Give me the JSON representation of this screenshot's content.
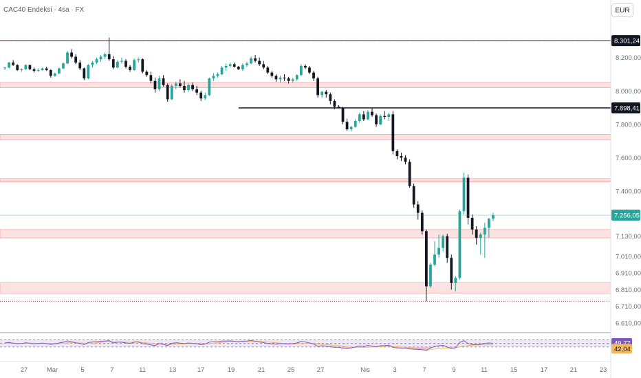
{
  "header": {
    "title": "CAC40 Endeksi · 4sa · FX",
    "currency": "EUR"
  },
  "colors": {
    "up": "#26a69a",
    "down": "#131722",
    "zone_fill": "#fde2e2",
    "zone_stroke": "#f08a8a",
    "rsi": "#7e57c2",
    "rsi_ma": "#f4b95a",
    "rsi_zone": "#ede7f6"
  },
  "chart_data": {
    "type": "candlestick",
    "title": "CAC40 Endeksi · 4sa · FX",
    "ylim": [
      6610,
      8380
    ],
    "y_ticks": [
      {
        "v": 8200,
        "label": "8.200,00"
      },
      {
        "v": 8000,
        "label": "8.000,00"
      },
      {
        "v": 7800,
        "label": "7.800,00"
      },
      {
        "v": 7600,
        "label": "7.600,00"
      },
      {
        "v": 7400,
        "label": "7.400,00"
      },
      {
        "v": 7130,
        "label": "7.130,00"
      },
      {
        "v": 7010,
        "label": "7.010,00"
      },
      {
        "v": 6910,
        "label": "6.910,00"
      },
      {
        "v": 6810,
        "label": "6.810,00"
      },
      {
        "v": 6710,
        "label": "6.710,00"
      },
      {
        "v": 6610,
        "label": "6.610,00"
      }
    ],
    "x_ticks": [
      "27",
      "Mar",
      "5",
      "7",
      "11",
      "13",
      "17",
      "19",
      "21",
      "25",
      "27",
      "Nis",
      "3",
      "7",
      "9",
      "11",
      "15",
      "17",
      "21",
      "23"
    ],
    "price_tags": [
      {
        "v": 8301.24,
        "label": "8.301,24",
        "style": "dark"
      },
      {
        "v": 7898.41,
        "label": "7.898,41",
        "style": "dark"
      },
      {
        "v": 7256.05,
        "label": "7.256,05",
        "style": "green"
      }
    ],
    "levels": [
      {
        "type": "line",
        "v": 8301.24,
        "style": "black-dotted-red"
      },
      {
        "type": "line",
        "v": 7898.41,
        "x_start_index": 56,
        "style": "black"
      },
      {
        "type": "line",
        "v": 6740,
        "style": "red-dotted"
      },
      {
        "type": "zone",
        "from": 8020,
        "to": 8050
      },
      {
        "type": "zone",
        "from": 7710,
        "to": 7740
      },
      {
        "type": "zone",
        "from": 7455,
        "to": 7475
      },
      {
        "type": "zone",
        "from": 7120,
        "to": 7170
      },
      {
        "type": "zone",
        "from": 6790,
        "to": 6850
      }
    ],
    "candles": [
      [
        8140,
        8145,
        8125,
        8140
      ],
      [
        8140,
        8175,
        8135,
        8170
      ],
      [
        8170,
        8185,
        8150,
        8155
      ],
      [
        8155,
        8160,
        8120,
        8125
      ],
      [
        8125,
        8135,
        8115,
        8130
      ],
      [
        8130,
        8160,
        8125,
        8155
      ],
      [
        8155,
        8158,
        8125,
        8130
      ],
      [
        8130,
        8140,
        8110,
        8120
      ],
      [
        8120,
        8135,
        8115,
        8125
      ],
      [
        8125,
        8140,
        8120,
        8135
      ],
      [
        8135,
        8145,
        8120,
        8125
      ],
      [
        8125,
        8130,
        8080,
        8090
      ],
      [
        8090,
        8110,
        8085,
        8105
      ],
      [
        8105,
        8140,
        8100,
        8135
      ],
      [
        8135,
        8170,
        8130,
        8165
      ],
      [
        8165,
        8240,
        8160,
        8230
      ],
      [
        8230,
        8250,
        8195,
        8205
      ],
      [
        8205,
        8220,
        8160,
        8170
      ],
      [
        8170,
        8185,
        8125,
        8135
      ],
      [
        8135,
        8140,
        8065,
        8075
      ],
      [
        8075,
        8160,
        8070,
        8155
      ],
      [
        8155,
        8180,
        8140,
        8170
      ],
      [
        8170,
        8200,
        8160,
        8190
      ],
      [
        8190,
        8215,
        8175,
        8205
      ],
      [
        8205,
        8230,
        8190,
        8220
      ],
      [
        8220,
        8320,
        8180,
        8190
      ],
      [
        8190,
        8210,
        8130,
        8140
      ],
      [
        8140,
        8185,
        8135,
        8175
      ],
      [
        8175,
        8200,
        8165,
        8180
      ],
      [
        8180,
        8190,
        8135,
        8145
      ],
      [
        8145,
        8155,
        8115,
        8125
      ],
      [
        8125,
        8195,
        8120,
        8185
      ],
      [
        8185,
        8200,
        8170,
        8190
      ],
      [
        8190,
        8195,
        8105,
        8115
      ],
      [
        8115,
        8125,
        8085,
        8095
      ],
      [
        8095,
        8115,
        8045,
        8060
      ],
      [
        8060,
        8080,
        7990,
        8010
      ],
      [
        8010,
        8090,
        8000,
        8075
      ],
      [
        8075,
        8095,
        8025,
        8035
      ],
      [
        8035,
        8045,
        7935,
        7950
      ],
      [
        7950,
        8040,
        7945,
        8030
      ],
      [
        8030,
        8055,
        8010,
        8045
      ],
      [
        8045,
        8070,
        8020,
        8030
      ],
      [
        8030,
        8060,
        7990,
        8005
      ],
      [
        8005,
        8045,
        7995,
        8035
      ],
      [
        8035,
        8050,
        8000,
        8010
      ],
      [
        8010,
        8030,
        7975,
        7990
      ],
      [
        7990,
        8000,
        7940,
        7955
      ],
      [
        7955,
        7990,
        7945,
        7975
      ],
      [
        7975,
        8080,
        7970,
        8075
      ],
      [
        8075,
        8105,
        8060,
        8090
      ],
      [
        8090,
        8110,
        8080,
        8100
      ],
      [
        8100,
        8150,
        8095,
        8140
      ],
      [
        8140,
        8165,
        8120,
        8150
      ],
      [
        8150,
        8170,
        8140,
        8160
      ],
      [
        8160,
        8170,
        8140,
        8145
      ],
      [
        8145,
        8150,
        8125,
        8130
      ],
      [
        8130,
        8165,
        8120,
        8155
      ],
      [
        8155,
        8175,
        8145,
        8165
      ],
      [
        8165,
        8205,
        8160,
        8195
      ],
      [
        8195,
        8215,
        8170,
        8180
      ],
      [
        8180,
        8200,
        8150,
        8160
      ],
      [
        8160,
        8180,
        8130,
        8140
      ],
      [
        8140,
        8150,
        8100,
        8110
      ],
      [
        8110,
        8120,
        8080,
        8090
      ],
      [
        8090,
        8100,
        8055,
        8070
      ],
      [
        8070,
        8090,
        8050,
        8080
      ],
      [
        8080,
        8100,
        8060,
        8075
      ],
      [
        8075,
        8085,
        8045,
        8060
      ],
      [
        8060,
        8080,
        8050,
        8070
      ],
      [
        8070,
        8100,
        8060,
        8095
      ],
      [
        8095,
        8160,
        8090,
        8150
      ],
      [
        8150,
        8160,
        8130,
        8140
      ],
      [
        8140,
        8150,
        8100,
        8110
      ],
      [
        8110,
        8120,
        8060,
        8075
      ],
      [
        8075,
        8085,
        7960,
        7975
      ],
      [
        7975,
        8000,
        7960,
        7995
      ],
      [
        7995,
        8005,
        7960,
        7980
      ],
      [
        7980,
        7990,
        7920,
        7940
      ],
      [
        7940,
        7950,
        7890,
        7905
      ],
      [
        7905,
        7915,
        7895,
        7900
      ],
      [
        7900,
        7905,
        7800,
        7815
      ],
      [
        7815,
        7835,
        7760,
        7770
      ],
      [
        7770,
        7790,
        7760,
        7785
      ],
      [
        7785,
        7830,
        7780,
        7820
      ],
      [
        7820,
        7870,
        7810,
        7860
      ],
      [
        7860,
        7880,
        7820,
        7830
      ],
      [
        7830,
        7885,
        7825,
        7875
      ],
      [
        7875,
        7895,
        7845,
        7855
      ],
      [
        7855,
        7865,
        7785,
        7800
      ],
      [
        7800,
        7860,
        7795,
        7850
      ],
      [
        7850,
        7880,
        7830,
        7845
      ],
      [
        7845,
        7870,
        7820,
        7860
      ],
      [
        7860,
        7880,
        7620,
        7640
      ],
      [
        7640,
        7650,
        7590,
        7610
      ],
      [
        7610,
        7630,
        7580,
        7600
      ],
      [
        7600,
        7615,
        7560,
        7575
      ],
      [
        7575,
        7590,
        7420,
        7430
      ],
      [
        7430,
        7445,
        7300,
        7320
      ],
      [
        7320,
        7340,
        7230,
        7270
      ],
      [
        7270,
        7285,
        7140,
        7160
      ],
      [
        7160,
        7170,
        6740,
        6830
      ],
      [
        6830,
        6970,
        6820,
        6960
      ],
      [
        6960,
        7100,
        6950,
        7020
      ],
      [
        7020,
        7140,
        7000,
        7060
      ],
      [
        7060,
        7140,
        7040,
        7130
      ],
      [
        7130,
        7145,
        6970,
        7000
      ],
      [
        7000,
        7020,
        6810,
        6850
      ],
      [
        6850,
        6890,
        6800,
        6880
      ],
      [
        6880,
        7290,
        6870,
        7280
      ],
      [
        7280,
        7510,
        7260,
        7480
      ],
      [
        7480,
        7500,
        7200,
        7240
      ],
      [
        7240,
        7260,
        7140,
        7170
      ],
      [
        7170,
        7190,
        7080,
        7120
      ],
      [
        7120,
        7150,
        7020,
        7140
      ],
      [
        7140,
        7210,
        7000,
        7180
      ],
      [
        7180,
        7240,
        7120,
        7235
      ],
      [
        7235,
        7270,
        7220,
        7256
      ]
    ],
    "rsi": {
      "ylim": [
        0,
        100
      ],
      "overbought": 70,
      "oversold": 30,
      "values": [
        52,
        55,
        50,
        48,
        49,
        53,
        50,
        47,
        49,
        51,
        48,
        44,
        47,
        52,
        56,
        63,
        58,
        53,
        49,
        43,
        54,
        57,
        59,
        61,
        62,
        64,
        52,
        56,
        56,
        52,
        49,
        57,
        58,
        48,
        46,
        42,
        38,
        48,
        44,
        38,
        50,
        53,
        51,
        48,
        52,
        49,
        47,
        43,
        46,
        56,
        58,
        59,
        62,
        62,
        63,
        61,
        58,
        61,
        62,
        65,
        61,
        57,
        54,
        49,
        47,
        45,
        48,
        47,
        46,
        48,
        52,
        60,
        57,
        52,
        46,
        34,
        37,
        35,
        32,
        28,
        28,
        24,
        21,
        25,
        30,
        36,
        33,
        39,
        35,
        31,
        37,
        38,
        40,
        28,
        25,
        24,
        23,
        20,
        18,
        17,
        16,
        11,
        25,
        33,
        37,
        39,
        30,
        22,
        26,
        55,
        64,
        48,
        44,
        42,
        45,
        50,
        52,
        50
      ],
      "ma_values": [
        50,
        51,
        51,
        50,
        50,
        51,
        51,
        50,
        50,
        50,
        50,
        49,
        49,
        49,
        50,
        52,
        53,
        53,
        52,
        51,
        51,
        52,
        53,
        55,
        57,
        59,
        58,
        57,
        57,
        56,
        55,
        55,
        55,
        54,
        52,
        50,
        47,
        46,
        45,
        44,
        44,
        45,
        46,
        47,
        48,
        49,
        49,
        48,
        48,
        49,
        51,
        53,
        55,
        57,
        59,
        60,
        60,
        60,
        60,
        61,
        61,
        60,
        59,
        57,
        55,
        53,
        51,
        49,
        48,
        47,
        47,
        48,
        49,
        49,
        49,
        47,
        45,
        43,
        41,
        39,
        37,
        34,
        31,
        29,
        28,
        28,
        28,
        29,
        30,
        31,
        32,
        33,
        34,
        33,
        32,
        30,
        28,
        26,
        24,
        22,
        20,
        18,
        18,
        19,
        21,
        23,
        25,
        25,
        26,
        30,
        35,
        38,
        40,
        41,
        42,
        42,
        42,
        42
      ],
      "current": {
        "v": 49.77,
        "label": "49,77"
      },
      "ma_current": {
        "v": 42.04,
        "label": "42,04"
      }
    }
  }
}
